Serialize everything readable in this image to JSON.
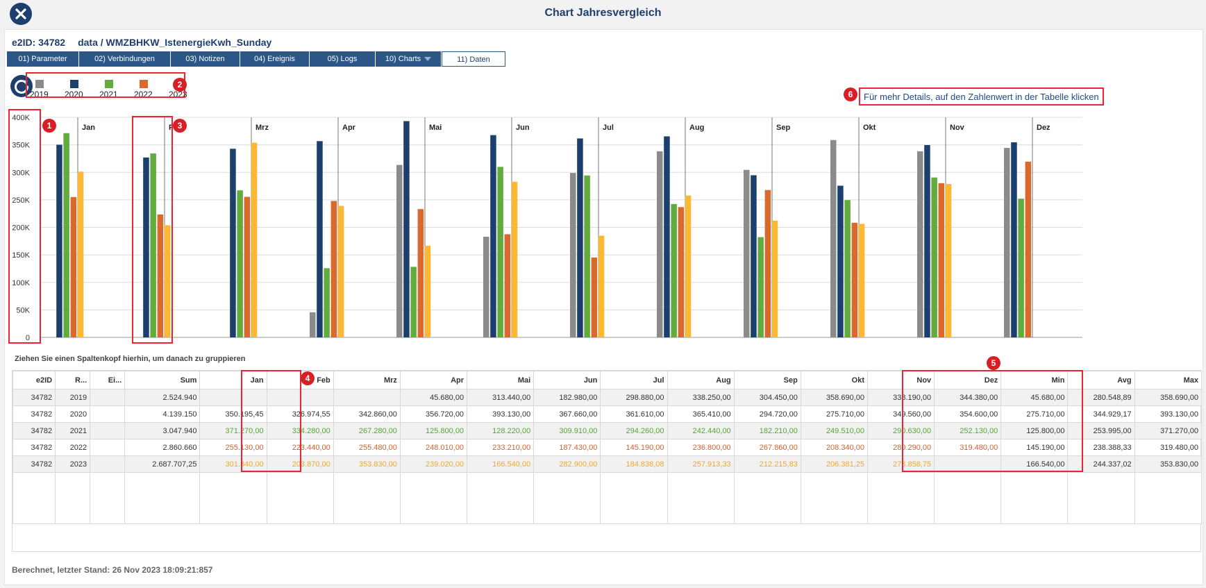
{
  "window": {
    "title": "Chart Jahresvergleich"
  },
  "header": {
    "e2id": "e2ID: 34782",
    "path": "data / WMZBHKW_IstenergieKwh_Sunday"
  },
  "tabs": [
    {
      "label": "01) Parameter",
      "active": false
    },
    {
      "label": "02) Verbindungen",
      "active": false
    },
    {
      "label": "03) Notizen",
      "active": false
    },
    {
      "label": "04) Ereignis",
      "active": false
    },
    {
      "label": "05) Logs",
      "active": false
    },
    {
      "label": "10) Charts",
      "active": false,
      "dropdown": true
    },
    {
      "label": "11) Daten",
      "active": true
    }
  ],
  "icons": {
    "close": "close-icon",
    "refresh": "refresh-icon",
    "dropdown": "caret-down-icon"
  },
  "hint": "Für mehr Details, auf den Zahlenwert in der Tabelle  klicken",
  "markers": [
    "1",
    "2",
    "3",
    "4",
    "5",
    "6"
  ],
  "colors": {
    "2019": "#8b8b8b",
    "2020": "#1c3f6e",
    "2021": "#62ab3d",
    "2022": "#d9692d",
    "2023": "#fbb834"
  },
  "chart_data": {
    "type": "bar",
    "categories": [
      "Jan",
      "Feb",
      "Mrz",
      "Apr",
      "Mai",
      "Jun",
      "Jul",
      "Aug",
      "Sep",
      "Okt",
      "Nov",
      "Dez"
    ],
    "series": [
      {
        "name": "2019",
        "values": [
          null,
          null,
          null,
          45680,
          313440,
          182980,
          298880,
          338250,
          304450,
          358690,
          338190,
          344380
        ]
      },
      {
        "name": "2020",
        "values": [
          350195.45,
          326974.55,
          342860,
          356720,
          393130,
          367660,
          361610,
          365410,
          294720,
          275710,
          349560,
          354600
        ]
      },
      {
        "name": "2021",
        "values": [
          371270,
          334280,
          267280,
          125800,
          128220,
          309910,
          294260,
          242440,
          182210,
          249510,
          290630,
          252130
        ]
      },
      {
        "name": "2022",
        "values": [
          255130,
          223440,
          255480,
          248010,
          233210,
          187430,
          145190,
          236800,
          267860,
          208340,
          280290,
          319480
        ]
      },
      {
        "name": "2023",
        "values": [
          301340,
          203870,
          353830,
          239020,
          166540,
          282900,
          184838.08,
          257913.33,
          212215.83,
          206381.25,
          278858.75,
          null
        ]
      }
    ],
    "y_ticks": [
      "0",
      "50K",
      "100K",
      "150K",
      "200K",
      "250K",
      "300K",
      "350K",
      "400K"
    ],
    "ylim": [
      0,
      400000
    ],
    "grid": true,
    "legend": "top-left",
    "title": "",
    "xlabel": "",
    "ylabel": ""
  },
  "table": {
    "group_hint": "Ziehen Sie einen Spaltenkopf hierhin, um danach zu gruppieren",
    "columns": [
      "e2ID",
      "R...",
      "Ei...",
      "Sum",
      "Jan",
      "Feb",
      "Mrz",
      "Apr",
      "Mai",
      "Jun",
      "Jul",
      "Aug",
      "Sep",
      "Okt",
      "Nov",
      "Dez",
      "Min",
      "Avg",
      "Max"
    ],
    "rows": [
      {
        "year": "2019",
        "cells": [
          "34782",
          "2019",
          "",
          "2.524.940",
          "",
          "",
          "",
          "45.680,00",
          "313.440,00",
          "182.980,00",
          "298.880,00",
          "338.250,00",
          "304.450,00",
          "358.690,00",
          "338.190,00",
          "344.380,00",
          "45.680,00",
          "280.548,89",
          "358.690,00"
        ]
      },
      {
        "year": "2020",
        "cells": [
          "34782",
          "2020",
          "",
          "4.139.150",
          "350.195,45",
          "326.974,55",
          "342.860,00",
          "356.720,00",
          "393.130,00",
          "367.660,00",
          "361.610,00",
          "365.410,00",
          "294.720,00",
          "275.710,00",
          "349.560,00",
          "354.600,00",
          "275.710,00",
          "344.929,17",
          "393.130,00"
        ]
      },
      {
        "year": "2021",
        "cells": [
          "34782",
          "2021",
          "",
          "3.047.940",
          "371.270,00",
          "334.280,00",
          "267.280,00",
          "125.800,00",
          "128.220,00",
          "309.910,00",
          "294.260,00",
          "242.440,00",
          "182.210,00",
          "249.510,00",
          "290.630,00",
          "252.130,00",
          "125.800,00",
          "253.995,00",
          "371.270,00"
        ]
      },
      {
        "year": "2022",
        "cells": [
          "34782",
          "2022",
          "",
          "2.860.660",
          "255.130,00",
          "223.440,00",
          "255.480,00",
          "248.010,00",
          "233.210,00",
          "187.430,00",
          "145.190,00",
          "236.800,00",
          "267.860,00",
          "208.340,00",
          "280.290,00",
          "319.480,00",
          "145.190,00",
          "238.388,33",
          "319.480,00"
        ]
      },
      {
        "year": "2023",
        "cells": [
          "34782",
          "2023",
          "",
          "2.687.707,25",
          "301.340,00",
          "203.870,00",
          "353.830,00",
          "239.020,00",
          "166.540,00",
          "282.900,00",
          "184.838,08",
          "257.913,33",
          "212.215,83",
          "206.381,25",
          "278.858,75",
          "",
          "166.540,00",
          "244.337,02",
          "353.830,00"
        ]
      }
    ]
  },
  "footer": "Berechnet, letzter Stand: 26 Nov 2023 18:09:21:857"
}
